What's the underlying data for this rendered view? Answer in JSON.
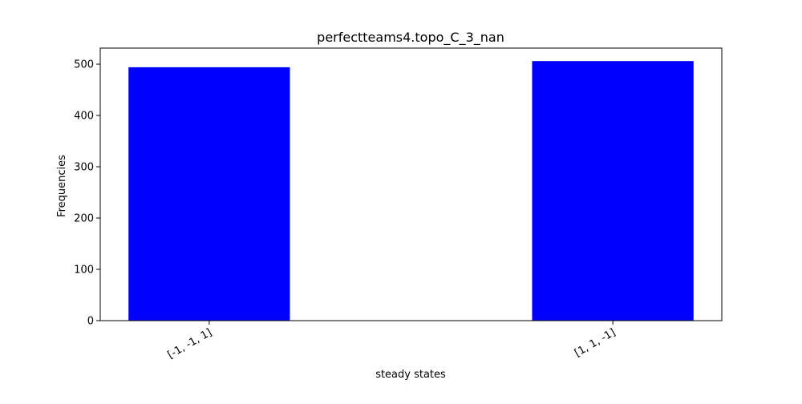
{
  "chart_data": {
    "type": "bar",
    "title": "perfectteams4.topo_C_3_nan",
    "xlabel": "steady states",
    "ylabel": "Frequencies",
    "categories": [
      "[-1, -1, 1]",
      "[1, 1, -1]"
    ],
    "values": [
      494,
      506
    ],
    "ylim": [
      0,
      531.3
    ],
    "yticks": [
      "0",
      "100",
      "200",
      "300",
      "400",
      "500"
    ],
    "bar_color": "#0000ff",
    "grid": false,
    "legend": "none"
  }
}
